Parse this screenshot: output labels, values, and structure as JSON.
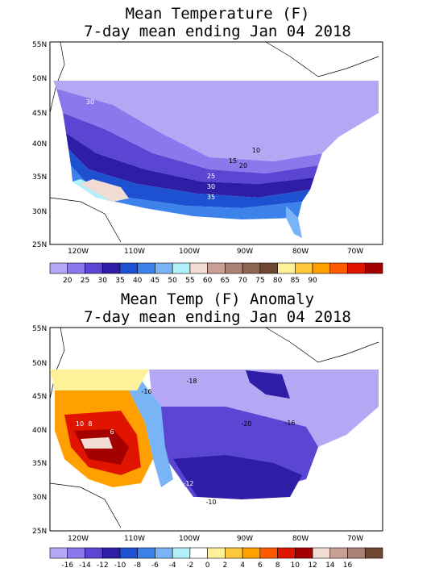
{
  "maps": [
    {
      "title_line1": "Mean Temperature (F)",
      "title_line2": "7-day mean ending Jan 04 2018",
      "lat_labels": [
        "55N",
        "50N",
        "45N",
        "40N",
        "35N",
        "30N",
        "25N"
      ],
      "lon_labels": [
        "120W",
        "110W",
        "100W",
        "90W",
        "80W",
        "70W"
      ],
      "contour_labels": [
        "30",
        "10",
        "15",
        "20",
        "25",
        "30",
        "35"
      ],
      "colorbar": {
        "colors": [
          "#b4a8f4",
          "#8c78ec",
          "#5a46d2",
          "#2d1ea5",
          "#1e50d2",
          "#3c82ea",
          "#78b4f6",
          "#b4f0fa",
          "#f0dcd2",
          "#c8a096",
          "#aa8278",
          "#8c6450",
          "#6e4632",
          "#fff09a",
          "#ffc83c",
          "#ffa000",
          "#ff5a00",
          "#e11400",
          "#a50000"
        ],
        "labels": [
          "20",
          "25",
          "30",
          "35",
          "40",
          "45",
          "50",
          "55",
          "60",
          "65",
          "70",
          "75",
          "80",
          "85",
          "90"
        ]
      }
    },
    {
      "title_line1": "Mean Temp (F) Anomaly",
      "title_line2": "7-day mean ending Jan 04 2018",
      "lat_labels": [
        "55N",
        "50N",
        "45N",
        "40N",
        "35N",
        "30N",
        "25N"
      ],
      "lon_labels": [
        "120W",
        "110W",
        "100W",
        "90W",
        "80W",
        "70W"
      ],
      "contour_labels": [
        "-18",
        "-16",
        "10",
        "8",
        "6",
        "-20",
        "-16",
        "-12",
        "-10"
      ],
      "colorbar": {
        "colors": [
          "#b4a8f4",
          "#8c78ec",
          "#5a46d2",
          "#2d1ea5",
          "#1e50d2",
          "#3c82ea",
          "#78b4f6",
          "#b4f0fa",
          "#ffffff",
          "#fff09a",
          "#ffc83c",
          "#ffa000",
          "#ff5a00",
          "#e11400",
          "#a50000",
          "#f0dcd2",
          "#c8a096",
          "#aa8278",
          "#6e4632"
        ],
        "labels": [
          "-16",
          "-14",
          "-12",
          "-10",
          "-8",
          "-6",
          "-4",
          "-2",
          "0",
          "2",
          "4",
          "6",
          "8",
          "10",
          "12",
          "14",
          "16"
        ]
      }
    }
  ]
}
